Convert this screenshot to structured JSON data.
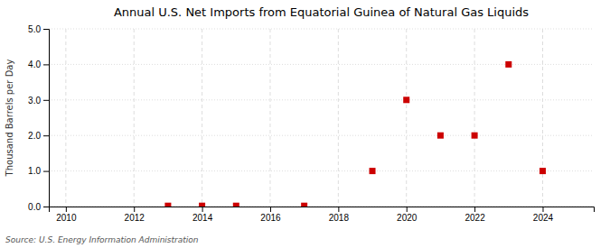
{
  "chart_data": {
    "type": "scatter",
    "title": "Annual U.S. Net Imports from Equatorial Guinea of Natural Gas Liquids",
    "ylabel": "Thousand Barrels per Day",
    "source": "Source: U.S. Energy Information Administration",
    "x": [
      2013,
      2014,
      2015,
      2017,
      2019,
      2020,
      2021,
      2022,
      2023,
      2024
    ],
    "values": [
      0.02,
      0.02,
      0.02,
      0.02,
      1.0,
      3.0,
      2.0,
      2.0,
      4.0,
      1.0
    ],
    "color": "#cc0000",
    "marker": "square",
    "xlim": [
      2009.5,
      2025.5
    ],
    "ylim": [
      0.0,
      5.0
    ],
    "xticks": [
      2010,
      2012,
      2014,
      2016,
      2018,
      2020,
      2022,
      2024
    ],
    "yticks": [
      {
        "value": 0.0,
        "label": "0.0"
      },
      {
        "value": 1.0,
        "label": "1.0"
      },
      {
        "value": 2.0,
        "label": "2.0"
      },
      {
        "value": 3.0,
        "label": "3.0"
      },
      {
        "value": 4.0,
        "label": "4.0"
      },
      {
        "value": 5.0,
        "label": "5.0"
      }
    ],
    "grid": true
  }
}
